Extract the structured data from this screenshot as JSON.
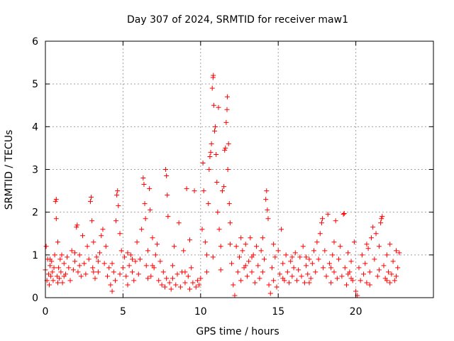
{
  "chart_data": {
    "type": "scatter",
    "title": "Day 307 of 2024, SRMTID for receiver maw1",
    "xlabel": "GPS time / hours",
    "ylabel": "SRMTID / TECUs",
    "xlim": [
      0,
      25
    ],
    "ylim": [
      0,
      6
    ],
    "xticks": [
      0,
      5,
      10,
      15,
      20
    ],
    "yticks": [
      0,
      1,
      2,
      3,
      4,
      5,
      6
    ],
    "grid": true,
    "marker": "plus",
    "marker_color": "#ff0000",
    "series": [
      {
        "name": "SRMTID",
        "points": [
          [
            0.0,
            0.65
          ],
          [
            0.05,
            1.2
          ],
          [
            0.1,
            0.4
          ],
          [
            0.15,
            0.9
          ],
          [
            0.2,
            0.55
          ],
          [
            0.25,
            0.3
          ],
          [
            0.3,
            0.75
          ],
          [
            0.35,
            0.5
          ],
          [
            0.4,
            0.85
          ],
          [
            0.45,
            0.6
          ],
          [
            0.5,
            0.4
          ],
          [
            0.55,
            0.7
          ],
          [
            0.6,
            1.0
          ],
          [
            0.65,
            2.25
          ],
          [
            0.7,
            1.85
          ],
          [
            0.7,
            2.3
          ],
          [
            0.75,
            0.5
          ],
          [
            0.8,
            1.3
          ],
          [
            0.85,
            0.7
          ],
          [
            0.9,
            0.45
          ],
          [
            0.95,
            0.9
          ],
          [
            1.0,
            0.6
          ],
          [
            1.05,
            1.0
          ],
          [
            1.1,
            0.35
          ],
          [
            1.2,
            0.8
          ],
          [
            1.3,
            0.55
          ],
          [
            1.4,
            0.95
          ],
          [
            1.5,
            0.7
          ],
          [
            1.6,
            0.4
          ],
          [
            1.7,
            1.1
          ],
          [
            1.8,
            0.65
          ],
          [
            1.9,
            0.85
          ],
          [
            2.0,
            1.65
          ],
          [
            2.05,
            1.7
          ],
          [
            2.1,
            0.6
          ],
          [
            2.2,
            1.0
          ],
          [
            2.3,
            0.5
          ],
          [
            2.4,
            1.45
          ],
          [
            2.5,
            0.8
          ],
          [
            2.6,
            0.55
          ],
          [
            2.7,
            1.2
          ],
          [
            2.8,
            0.9
          ],
          [
            2.9,
            2.25
          ],
          [
            2.95,
            2.35
          ],
          [
            3.0,
            1.8
          ],
          [
            3.05,
            0.7
          ],
          [
            3.1,
            1.3
          ],
          [
            3.2,
            0.45
          ],
          [
            3.3,
            0.95
          ],
          [
            3.4,
            0.6
          ],
          [
            3.5,
            1.05
          ],
          [
            3.6,
            1.45
          ],
          [
            3.7,
            1.6
          ],
          [
            3.8,
            0.8
          ],
          [
            3.9,
            1.2
          ],
          [
            4.0,
            0.5
          ],
          [
            4.1,
            0.7
          ],
          [
            4.2,
            0.3
          ],
          [
            4.3,
            0.15
          ],
          [
            4.4,
            0.6
          ],
          [
            4.5,
            0.4
          ],
          [
            4.55,
            1.8
          ],
          [
            4.6,
            2.4
          ],
          [
            4.65,
            2.5
          ],
          [
            4.7,
            2.15
          ],
          [
            4.8,
            1.5
          ],
          [
            4.9,
            1.1
          ],
          [
            5.0,
            0.7
          ],
          [
            5.1,
            0.95
          ],
          [
            5.2,
            0.5
          ],
          [
            5.3,
            0.3
          ],
          [
            5.4,
            0.75
          ],
          [
            5.5,
            1.0
          ],
          [
            5.6,
            0.6
          ],
          [
            5.7,
            0.4
          ],
          [
            5.8,
            0.85
          ],
          [
            5.9,
            1.3
          ],
          [
            6.0,
            0.55
          ],
          [
            6.1,
            0.9
          ],
          [
            6.2,
            1.6
          ],
          [
            6.3,
            2.8
          ],
          [
            6.35,
            2.65
          ],
          [
            6.4,
            2.2
          ],
          [
            6.45,
            1.85
          ],
          [
            6.5,
            0.75
          ],
          [
            6.6,
            1.1
          ],
          [
            6.7,
            2.55
          ],
          [
            6.75,
            2.05
          ],
          [
            6.8,
            0.5
          ],
          [
            6.9,
            1.4
          ],
          [
            7.0,
            0.7
          ],
          [
            7.1,
            1.0
          ],
          [
            7.2,
            1.25
          ],
          [
            7.3,
            0.4
          ],
          [
            7.4,
            0.85
          ],
          [
            7.5,
            0.3
          ],
          [
            7.6,
            0.6
          ],
          [
            7.7,
            0.25
          ],
          [
            7.75,
            3.0
          ],
          [
            7.8,
            2.85
          ],
          [
            7.85,
            2.4
          ],
          [
            7.9,
            1.9
          ],
          [
            8.0,
            0.35
          ],
          [
            8.1,
            0.2
          ],
          [
            8.2,
            0.45
          ],
          [
            8.3,
            1.2
          ],
          [
            8.4,
            0.3
          ],
          [
            8.5,
            0.55
          ],
          [
            8.6,
            1.75
          ],
          [
            8.7,
            0.25
          ],
          [
            8.8,
            0.6
          ],
          [
            8.9,
            1.1
          ],
          [
            9.0,
            0.35
          ],
          [
            9.1,
            2.55
          ],
          [
            9.2,
            0.5
          ],
          [
            9.3,
            0.2
          ],
          [
            9.4,
            0.7
          ],
          [
            9.5,
            0.35
          ],
          [
            9.6,
            2.5
          ],
          [
            9.7,
            0.25
          ],
          [
            9.8,
            0.4
          ],
          [
            9.9,
            0.3
          ],
          [
            10.0,
            0.45
          ],
          [
            10.1,
            1.6
          ],
          [
            10.15,
            3.15
          ],
          [
            10.2,
            2.5
          ],
          [
            10.3,
            1.3
          ],
          [
            10.4,
            0.6
          ],
          [
            10.5,
            2.2
          ],
          [
            10.55,
            3.0
          ],
          [
            10.6,
            3.3
          ],
          [
            10.65,
            3.4
          ],
          [
            10.7,
            3.6
          ],
          [
            10.75,
            4.9
          ],
          [
            10.8,
            5.15
          ],
          [
            10.82,
            5.2
          ],
          [
            10.85,
            4.5
          ],
          [
            10.9,
            3.9
          ],
          [
            10.95,
            4.0
          ],
          [
            11.0,
            3.35
          ],
          [
            11.05,
            2.7
          ],
          [
            11.1,
            2.0
          ],
          [
            11.15,
            4.45
          ],
          [
            11.2,
            1.6
          ],
          [
            11.3,
            1.2
          ],
          [
            11.4,
            2.5
          ],
          [
            11.5,
            2.6
          ],
          [
            11.55,
            3.45
          ],
          [
            11.6,
            3.5
          ],
          [
            11.65,
            4.1
          ],
          [
            11.7,
            4.4
          ],
          [
            11.72,
            4.7
          ],
          [
            11.75,
            3.0
          ],
          [
            11.8,
            3.6
          ],
          [
            11.85,
            2.2
          ],
          [
            11.9,
            1.75
          ],
          [
            12.0,
            0.8
          ],
          [
            12.1,
            0.3
          ],
          [
            12.2,
            0.05
          ],
          [
            12.3,
            1.2
          ],
          [
            12.4,
            0.6
          ],
          [
            12.5,
            0.95
          ],
          [
            12.6,
            0.4
          ],
          [
            12.7,
            1.1
          ],
          [
            12.8,
            0.7
          ],
          [
            12.9,
            1.25
          ],
          [
            13.0,
            0.5
          ],
          [
            13.1,
            0.85
          ],
          [
            13.2,
            1.4
          ],
          [
            13.3,
            0.6
          ],
          [
            13.4,
            1.0
          ],
          [
            13.5,
            0.35
          ],
          [
            13.6,
            1.2
          ],
          [
            13.7,
            0.75
          ],
          [
            13.8,
            0.45
          ],
          [
            13.9,
            1.1
          ],
          [
            14.0,
            0.6
          ],
          [
            14.1,
            0.9
          ],
          [
            14.2,
            2.3
          ],
          [
            14.25,
            2.5
          ],
          [
            14.3,
            2.05
          ],
          [
            14.35,
            1.85
          ],
          [
            14.4,
            0.3
          ],
          [
            14.5,
            0.1
          ],
          [
            14.6,
            0.7
          ],
          [
            14.7,
            0.4
          ],
          [
            14.8,
            0.95
          ],
          [
            14.9,
            0.25
          ],
          [
            15.0,
            1.1
          ],
          [
            15.1,
            0.55
          ],
          [
            15.2,
            1.6
          ],
          [
            15.3,
            0.8
          ],
          [
            15.4,
            0.4
          ],
          [
            15.5,
            1.0
          ],
          [
            15.6,
            0.6
          ],
          [
            15.7,
            0.35
          ],
          [
            15.8,
            0.85
          ],
          [
            15.9,
            0.5
          ],
          [
            16.0,
            0.7
          ],
          [
            16.1,
            1.05
          ],
          [
            16.2,
            0.4
          ],
          [
            16.3,
            0.65
          ],
          [
            16.4,
            0.95
          ],
          [
            16.5,
            0.5
          ],
          [
            16.6,
            1.2
          ],
          [
            16.7,
            0.35
          ],
          [
            16.8,
            0.75
          ],
          [
            16.9,
            0.55
          ],
          [
            17.0,
            0.9
          ],
          [
            17.1,
            0.45
          ],
          [
            17.2,
            0.8
          ],
          [
            17.3,
            1.1
          ],
          [
            17.4,
            0.6
          ],
          [
            17.5,
            1.3
          ],
          [
            17.6,
            0.9
          ],
          [
            17.7,
            1.5
          ],
          [
            17.8,
            1.75
          ],
          [
            17.85,
            1.85
          ],
          [
            17.9,
            0.7
          ],
          [
            18.0,
            1.1
          ],
          [
            18.1,
            0.5
          ],
          [
            18.2,
            1.95
          ],
          [
            18.3,
            0.8
          ],
          [
            18.4,
            0.35
          ],
          [
            18.5,
            1.0
          ],
          [
            18.6,
            0.6
          ],
          [
            18.7,
            1.8
          ],
          [
            18.8,
            0.45
          ],
          [
            18.9,
            0.9
          ],
          [
            19.0,
            1.2
          ],
          [
            19.1,
            0.5
          ],
          [
            19.2,
            1.95
          ],
          [
            19.25,
            1.97
          ],
          [
            19.3,
            0.7
          ],
          [
            19.4,
            0.3
          ],
          [
            19.5,
            1.05
          ],
          [
            19.6,
            0.6
          ],
          [
            19.7,
            0.85
          ],
          [
            19.8,
            0.4
          ],
          [
            19.9,
            1.3
          ],
          [
            20.0,
            0.15
          ],
          [
            20.1,
            0.05
          ],
          [
            20.2,
            0.7
          ],
          [
            20.3,
            0.4
          ],
          [
            20.4,
            1.0
          ],
          [
            20.5,
            0.55
          ],
          [
            20.6,
            0.8
          ],
          [
            20.7,
            0.35
          ],
          [
            20.8,
            1.15
          ],
          [
            20.9,
            0.6
          ],
          [
            21.0,
            1.4
          ],
          [
            21.1,
            1.65
          ],
          [
            21.2,
            0.9
          ],
          [
            21.3,
            1.5
          ],
          [
            21.4,
            0.5
          ],
          [
            21.5,
            1.2
          ],
          [
            21.6,
            1.75
          ],
          [
            21.65,
            1.85
          ],
          [
            21.7,
            1.9
          ],
          [
            21.8,
            0.75
          ],
          [
            21.9,
            0.45
          ],
          [
            22.0,
            1.0
          ],
          [
            22.1,
            0.6
          ],
          [
            22.2,
            1.25
          ],
          [
            22.3,
            0.55
          ],
          [
            22.4,
            0.85
          ],
          [
            22.5,
            0.4
          ],
          [
            22.6,
            1.1
          ],
          [
            22.7,
            0.7
          ],
          [
            22.8,
            1.05
          ],
          [
            0.3,
            0.9
          ],
          [
            1.2,
            0.5
          ],
          [
            2.2,
            0.75
          ],
          [
            3.4,
            0.85
          ],
          [
            4.8,
            0.55
          ],
          [
            5.6,
            0.9
          ],
          [
            6.6,
            0.45
          ],
          [
            8.2,
            0.75
          ],
          [
            9.3,
            1.35
          ],
          [
            10.8,
            0.95
          ],
          [
            11.3,
            0.65
          ],
          [
            12.6,
            1.4
          ],
          [
            13.3,
            0.95
          ],
          [
            14.7,
            1.25
          ],
          [
            15.9,
            0.95
          ],
          [
            17.0,
            0.35
          ],
          [
            18.6,
            1.3
          ],
          [
            19.7,
            0.45
          ],
          [
            20.7,
            1.25
          ],
          [
            22.0,
            0.4
          ],
          [
            0.8,
            0.35
          ],
          [
            1.9,
            1.05
          ],
          [
            3.1,
            0.6
          ],
          [
            4.3,
            0.8
          ],
          [
            5.3,
            1.05
          ],
          [
            6.9,
            0.75
          ],
          [
            7.8,
            0.45
          ],
          [
            9.0,
            0.6
          ],
          [
            10.4,
            1.0
          ],
          [
            11.9,
            1.25
          ],
          [
            12.9,
            0.75
          ],
          [
            14.0,
            1.4
          ],
          [
            15.3,
            0.45
          ],
          [
            16.8,
            0.95
          ],
          [
            18.4,
            0.7
          ],
          [
            19.5,
            0.55
          ],
          [
            20.9,
            0.3
          ],
          [
            21.5,
            0.65
          ],
          [
            22.6,
            0.5
          ],
          [
            22.2,
            0.35
          ]
        ]
      }
    ]
  }
}
